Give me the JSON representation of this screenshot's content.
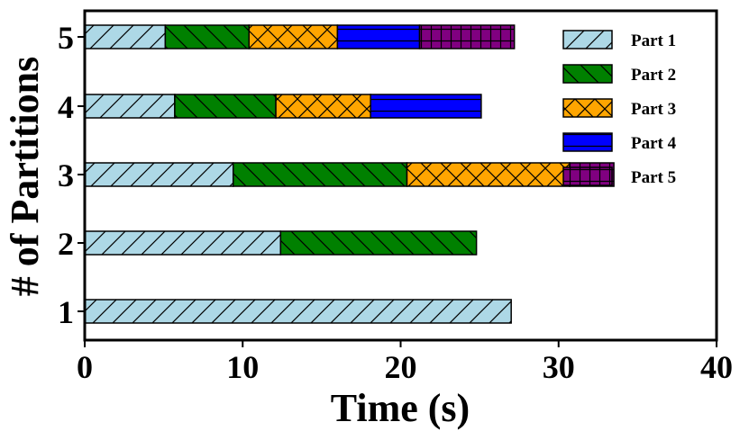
{
  "chart_data": {
    "type": "bar",
    "orientation": "horizontal",
    "stacked": true,
    "title": "",
    "xlabel": "Time (s)",
    "ylabel": "# of Partitions",
    "xlim": [
      0,
      40
    ],
    "x_ticks": [
      0,
      10,
      20,
      30,
      40
    ],
    "categories": [
      "1",
      "2",
      "3",
      "4",
      "5"
    ],
    "grid": false,
    "legend_position": "top-right",
    "series": [
      {
        "name": "Part 1",
        "color": "#add8e6",
        "hatch": "forward-slash",
        "values": [
          27.0,
          12.4,
          9.4,
          5.7,
          5.1
        ]
      },
      {
        "name": "Part 2",
        "color": "#008000",
        "hatch": "back-slash",
        "values": [
          0,
          12.4,
          11.0,
          6.4,
          5.3
        ]
      },
      {
        "name": "Part 3",
        "color": "#ffa500",
        "hatch": "cross",
        "values": [
          0,
          0,
          10.3,
          6.0,
          5.6
        ]
      },
      {
        "name": "Part 4",
        "color": "#0000ff",
        "hatch": "horizontal",
        "values": [
          0,
          0,
          0,
          7.0,
          5.2
        ]
      },
      {
        "name": "Part 5",
        "color": "#800080",
        "hatch": "grid",
        "values": [
          0,
          0,
          2.8,
          0,
          6.0
        ]
      }
    ]
  }
}
